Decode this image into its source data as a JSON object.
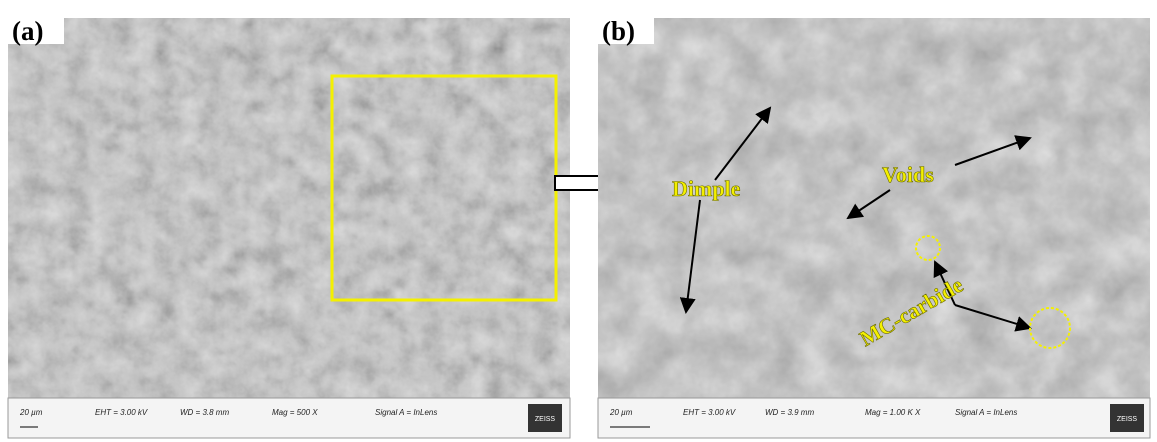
{
  "panels": [
    {
      "label": "(a)",
      "scale_bar": "20 µm",
      "eht": "EHT = 3.00 kV",
      "wd": "WD = 3.8 mm",
      "mag": "Mag = 500 X",
      "signal": "Signal A = InLens",
      "logo": "ZEISS"
    },
    {
      "label": "(b)",
      "scale_bar": "20 µm",
      "eht": "EHT = 3.00 kV",
      "wd": "WD = 3.9 mm",
      "mag": "Mag = 1.00 K X",
      "signal": "Signal A = InLens",
      "logo": "ZEISS",
      "annotations": {
        "dimple": "Dimple",
        "voids": "Voids",
        "carbide": "MC-carbide"
      }
    }
  ]
}
